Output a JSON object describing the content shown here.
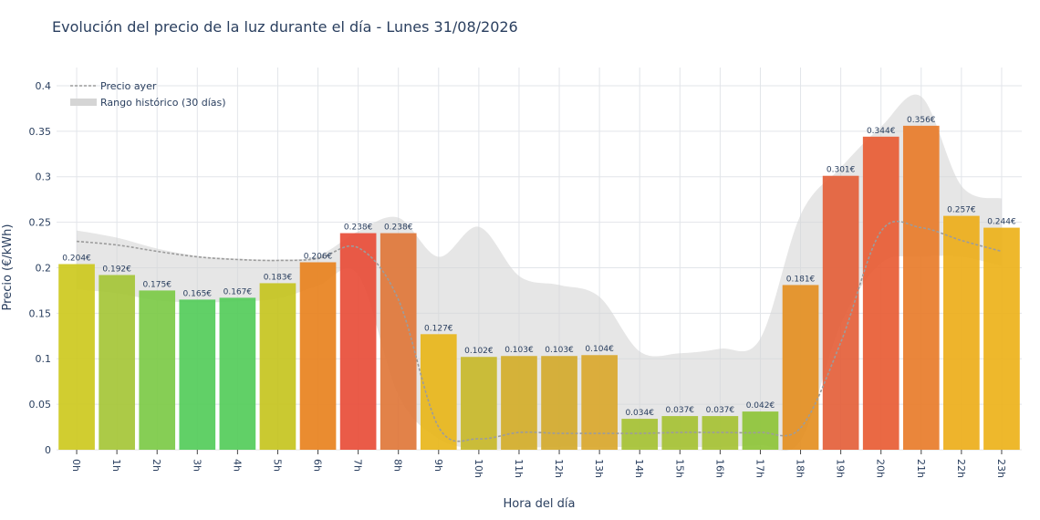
{
  "chart_data": {
    "type": "bar",
    "title": "Evolución del precio de la luz durante el día - Lunes 31/08/2026",
    "xlabel": "Hora del día",
    "ylabel": "Precio (€/kWh)",
    "ylim": [
      0,
      0.42
    ],
    "y_ticks": [
      "0",
      "0.05",
      "0.1",
      "0.15",
      "0.2",
      "0.25",
      "0.3",
      "0.35",
      "0.4"
    ],
    "categories": [
      "0h",
      "1h",
      "2h",
      "3h",
      "4h",
      "5h",
      "6h",
      "7h",
      "8h",
      "9h",
      "10h",
      "11h",
      "12h",
      "13h",
      "14h",
      "15h",
      "16h",
      "17h",
      "18h",
      "19h",
      "20h",
      "21h",
      "22h",
      "23h"
    ],
    "series": [
      {
        "values": [
          0.204,
          0.192,
          0.175,
          0.165,
          0.167,
          0.183,
          0.206,
          0.238,
          0.238,
          0.127,
          0.102,
          0.103,
          0.103,
          0.104,
          0.034,
          0.037,
          0.037,
          0.042,
          0.181,
          0.301,
          0.344,
          0.356,
          0.257,
          0.244
        ],
        "labels": [
          "0.204€",
          "0.192€",
          "0.175€",
          "0.165€",
          "0.167€",
          "0.183€",
          "0.206€",
          "0.238€",
          "0.238€",
          "0.127€",
          "0.102€",
          "0.103€",
          "0.103€",
          "0.104€",
          "0.034€",
          "0.037€",
          "0.037€",
          "0.042€",
          "0.181€",
          "0.301€",
          "0.344€",
          "0.356€",
          "0.257€",
          "0.244€"
        ],
        "colors": [
          "#cdc91e",
          "#a5c637",
          "#7cca47",
          "#54cc5a",
          "#54cc5a",
          "#c6c41f",
          "#e8821e",
          "#e84d38",
          "#e0773a",
          "#e8b61a",
          "#c8b92a",
          "#d4ae2a",
          "#d4aa2c",
          "#daa82e",
          "#a6c234",
          "#a6c234",
          "#a6c234",
          "#8ec438",
          "#e48f22",
          "#e4603a",
          "#e85c34",
          "#e87c2a",
          "#edae1a",
          "#edb21a"
        ]
      },
      {
        "name": "Precio ayer",
        "values": [
          0.229,
          0.225,
          0.218,
          0.212,
          0.209,
          0.208,
          0.21,
          0.222,
          0.165,
          0.025,
          0.012,
          0.019,
          0.018,
          0.018,
          0.018,
          0.019,
          0.019,
          0.019,
          0.024,
          0.118,
          0.24,
          0.244,
          0.23,
          0.218
        ]
      },
      {
        "name": "Rango histórico (30 días)",
        "upper": [
          0.241,
          0.233,
          0.221,
          0.213,
          0.21,
          0.209,
          0.213,
          0.24,
          0.255,
          0.212,
          0.245,
          0.191,
          0.181,
          0.168,
          0.108,
          0.106,
          0.111,
          0.122,
          0.258,
          0.31,
          0.355,
          0.388,
          0.29,
          0.276
        ],
        "lower": [
          0.176,
          0.172,
          0.164,
          0.162,
          0.163,
          0.166,
          0.18,
          0.192,
          0.06,
          0.012,
          0.001,
          0.002,
          0.003,
          0.003,
          0.003,
          0.003,
          0.003,
          0.005,
          0.01,
          0.138,
          0.205,
          0.212,
          0.212,
          0.202
        ]
      }
    ],
    "grid": true,
    "legend_position": "top-left",
    "colors": {
      "text": "#2a3f5f",
      "grid": "#e2e5ea",
      "band": "#d5d5d5",
      "ayer": "#9c9c9c"
    }
  }
}
